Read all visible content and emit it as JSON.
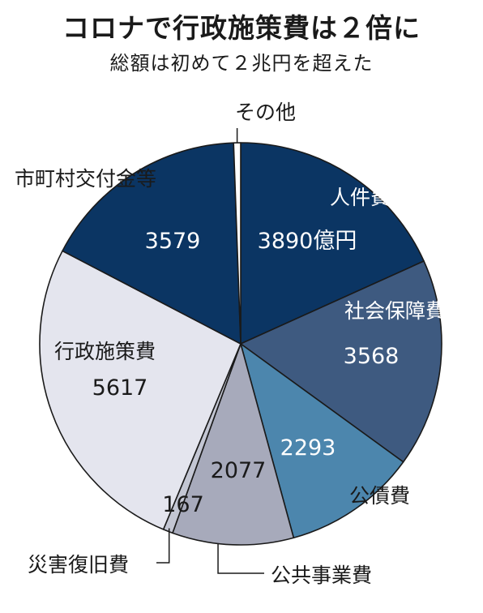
{
  "title": "コロナで行政施策費は２倍に",
  "subtitle": "総額は初めて２兆円を超えた",
  "chart_data": {
    "type": "pie",
    "unit": "億円",
    "slices": [
      {
        "label": "人件費",
        "value": 3890,
        "value_text": "3890億円",
        "color": "#0b3563"
      },
      {
        "label": "社会保障費",
        "value": 3568,
        "value_text": "3568",
        "color": "#3e5a80"
      },
      {
        "label": "公債費",
        "value": 2293,
        "value_text": "2293",
        "color": "#4c86ad"
      },
      {
        "label": "公共事業費",
        "value": 2077,
        "value_text": "2077",
        "color": "#a7aabb"
      },
      {
        "label": "災害復旧費",
        "value": 167,
        "value_text": "167",
        "color": "#c3c6d3"
      },
      {
        "label": "行政施策費",
        "value": 5617,
        "value_text": "5617",
        "color": "#e4e5ee"
      },
      {
        "label": "市町村交付金等",
        "value": 3579,
        "value_text": "3579",
        "color": "#0b3563"
      },
      {
        "label": "その他",
        "value": 120,
        "value_text": "",
        "color": "#ffffff"
      }
    ]
  }
}
